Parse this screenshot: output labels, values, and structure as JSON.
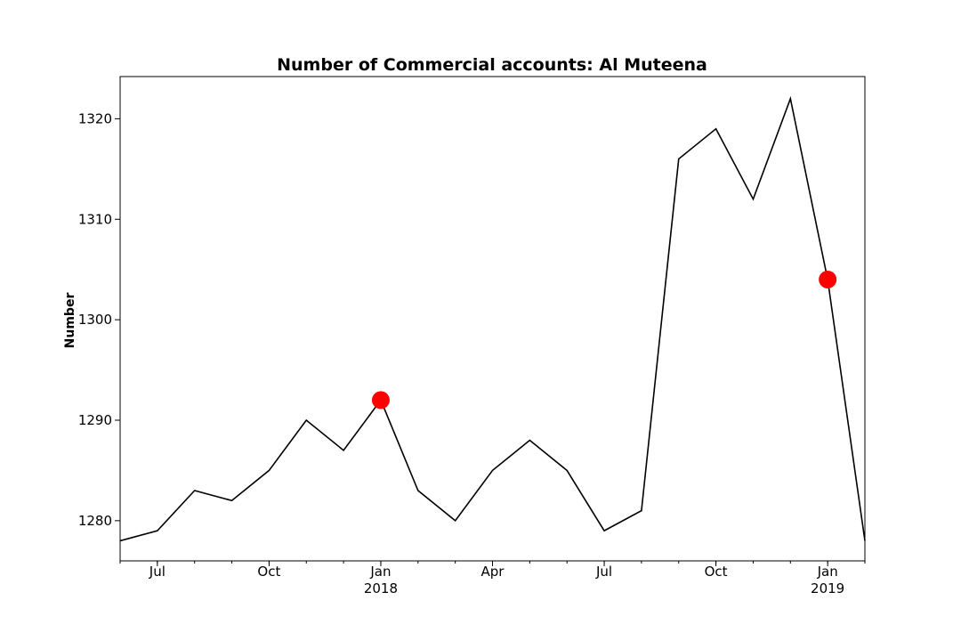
{
  "chart_data": {
    "type": "line",
    "title": "Number of Commercial accounts: Al Muteena",
    "xlabel": "",
    "ylabel": "Number",
    "x": [
      "2017-06",
      "2017-07",
      "2017-08",
      "2017-09",
      "2017-10",
      "2017-11",
      "2017-12",
      "2018-01",
      "2018-02",
      "2018-03",
      "2018-04",
      "2018-05",
      "2018-06",
      "2018-07",
      "2018-08",
      "2018-09",
      "2018-10",
      "2018-11",
      "2018-12",
      "2019-01",
      "2019-02"
    ],
    "series": [
      {
        "values": [
          1278,
          1279,
          1283,
          1282,
          1285,
          1290,
          1287,
          1292,
          1283,
          1280,
          1285,
          1288,
          1285,
          1279,
          1281,
          1316,
          1319,
          1312,
          1322,
          1304,
          1278
        ],
        "color": "#000000"
      }
    ],
    "highlighted_points": [
      {
        "x": "2018-01",
        "y": 1292,
        "color": "#ff0000"
      },
      {
        "x": "2019-01",
        "y": 1304,
        "color": "#ff0000"
      }
    ],
    "ylim": [
      1276,
      1324.2
    ],
    "xlim": [
      "2017-06",
      "2019-02"
    ],
    "y_ticks": [
      1280,
      1290,
      1300,
      1310,
      1320
    ],
    "x_ticks": [
      {
        "x": "2017-07",
        "label": "Jul",
        "sublabel": ""
      },
      {
        "x": "2017-10",
        "label": "Oct",
        "sublabel": ""
      },
      {
        "x": "2018-01",
        "label": "Jan",
        "sublabel": "2018"
      },
      {
        "x": "2018-04",
        "label": "Apr",
        "sublabel": ""
      },
      {
        "x": "2018-07",
        "label": "Jul",
        "sublabel": ""
      },
      {
        "x": "2018-10",
        "label": "Oct",
        "sublabel": ""
      },
      {
        "x": "2019-01",
        "label": "Jan",
        "sublabel": "2019"
      }
    ],
    "grid": false,
    "legend": "none"
  }
}
